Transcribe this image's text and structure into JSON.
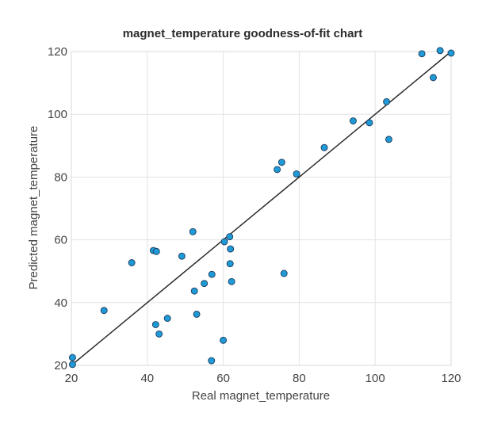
{
  "chart_data": {
    "type": "scatter",
    "title": "magnet_temperature goodness-of-fit chart",
    "xlabel": "Real magnet_temperature",
    "ylabel": "Predicted magnet_temperature",
    "xlim": [
      20,
      120
    ],
    "ylim": [
      20,
      120
    ],
    "xticks": [
      20,
      40,
      60,
      80,
      100,
      120
    ],
    "yticks": [
      20,
      40,
      60,
      80,
      100,
      120
    ],
    "grid": true,
    "point_color": "#1f9ad6",
    "point_edge_color": "#1b3a5c",
    "fit_line_color": "#2a2a2a",
    "fit_line": {
      "x": [
        20,
        120
      ],
      "y": [
        20,
        120
      ]
    },
    "points": [
      {
        "x": 20.3,
        "y": 22.5
      },
      {
        "x": 20.3,
        "y": 20.3
      },
      {
        "x": 28.6,
        "y": 37.5
      },
      {
        "x": 35.9,
        "y": 52.7
      },
      {
        "x": 41.6,
        "y": 56.6
      },
      {
        "x": 42.4,
        "y": 56.3
      },
      {
        "x": 42.2,
        "y": 33.0
      },
      {
        "x": 43.1,
        "y": 30.0
      },
      {
        "x": 45.3,
        "y": 35.0
      },
      {
        "x": 49.1,
        "y": 54.8
      },
      {
        "x": 52.0,
        "y": 62.6
      },
      {
        "x": 52.4,
        "y": 43.7
      },
      {
        "x": 53.0,
        "y": 36.3
      },
      {
        "x": 55.0,
        "y": 46.1
      },
      {
        "x": 57.0,
        "y": 49.0
      },
      {
        "x": 56.9,
        "y": 21.5
      },
      {
        "x": 60.0,
        "y": 28.0
      },
      {
        "x": 60.3,
        "y": 59.4
      },
      {
        "x": 61.7,
        "y": 61.0
      },
      {
        "x": 61.9,
        "y": 57.1
      },
      {
        "x": 61.8,
        "y": 52.4
      },
      {
        "x": 62.2,
        "y": 46.7
      },
      {
        "x": 74.2,
        "y": 82.4
      },
      {
        "x": 75.4,
        "y": 84.7
      },
      {
        "x": 76.0,
        "y": 49.3
      },
      {
        "x": 79.3,
        "y": 81.0
      },
      {
        "x": 86.6,
        "y": 89.4
      },
      {
        "x": 94.2,
        "y": 97.9
      },
      {
        "x": 98.5,
        "y": 97.3
      },
      {
        "x": 103.0,
        "y": 104.0
      },
      {
        "x": 103.6,
        "y": 92.0
      },
      {
        "x": 112.3,
        "y": 119.3
      },
      {
        "x": 115.3,
        "y": 111.7
      },
      {
        "x": 117.1,
        "y": 120.3
      },
      {
        "x": 120.0,
        "y": 119.5
      }
    ]
  }
}
